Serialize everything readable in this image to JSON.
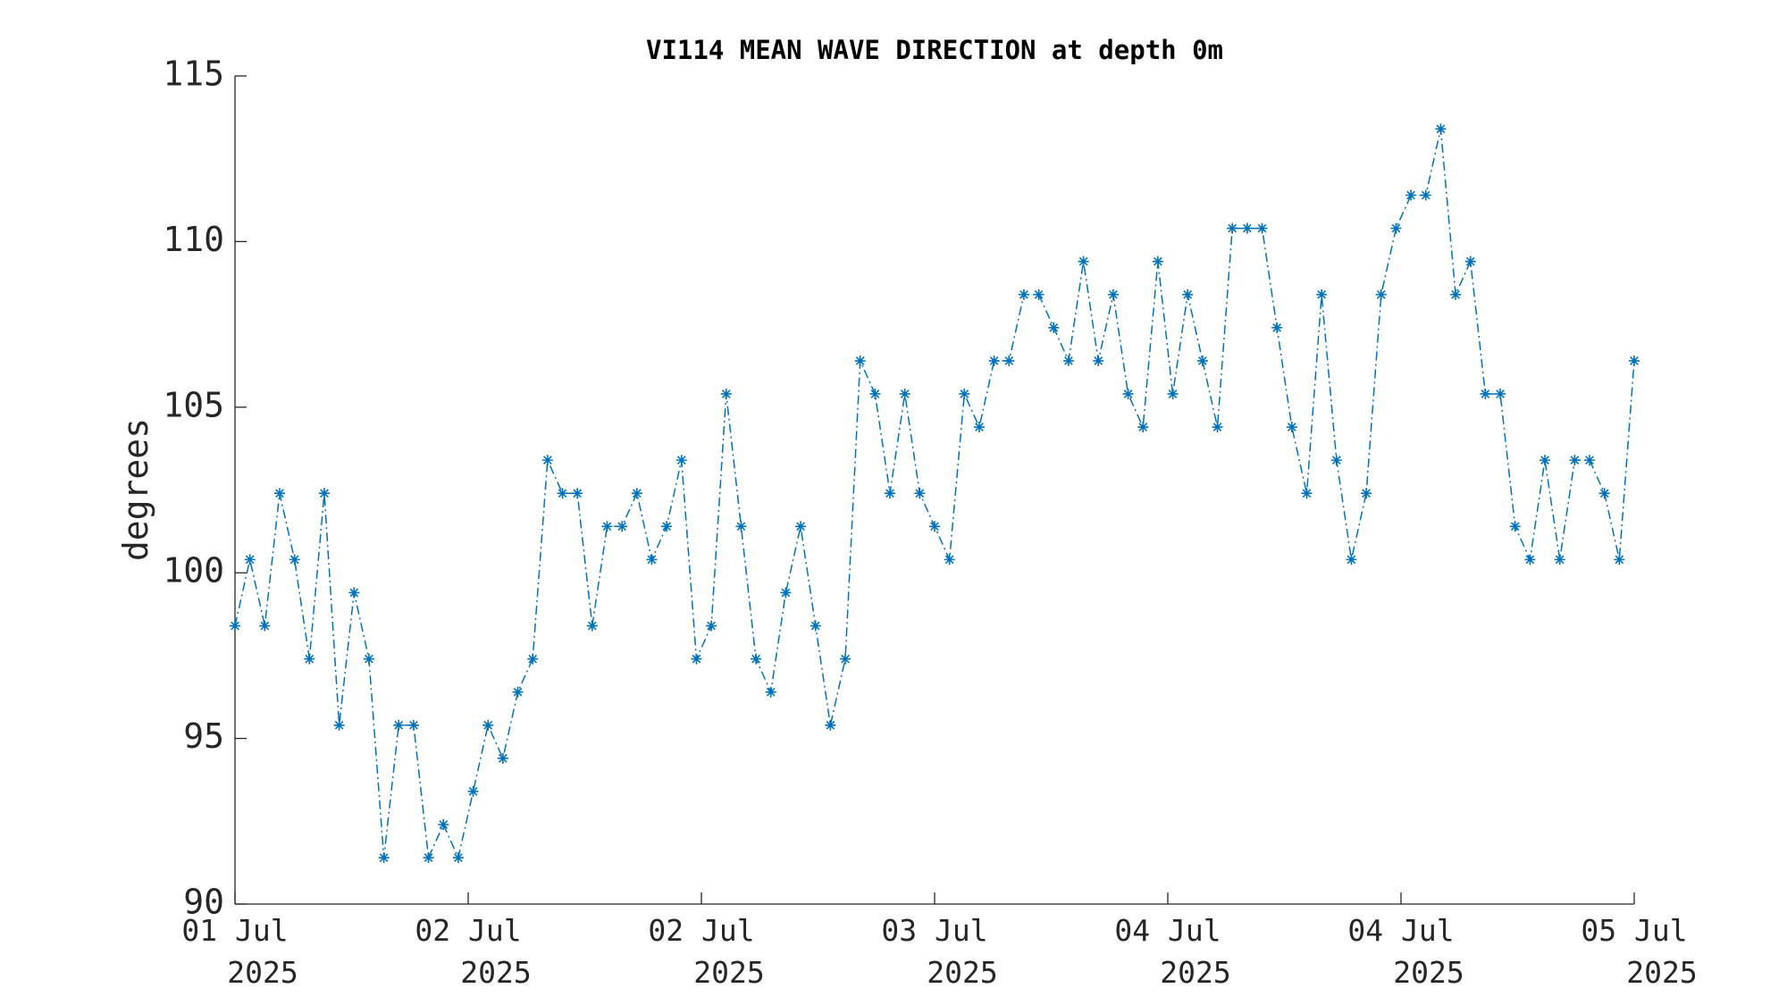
{
  "chart_data": {
    "type": "line",
    "title": "VI114 MEAN WAVE DIRECTION at depth 0m",
    "y_label": "degrees",
    "x": [
      0,
      1,
      2,
      3,
      4,
      5,
      6,
      7,
      8,
      9,
      10,
      11,
      12,
      13,
      14,
      15,
      16,
      17,
      18,
      19,
      20,
      21,
      22,
      23,
      24,
      25,
      26,
      27,
      28,
      29,
      30,
      31,
      32,
      33,
      34,
      35,
      36,
      37,
      38,
      39,
      40,
      41,
      42,
      43,
      44,
      45,
      46,
      47,
      48,
      49,
      50,
      51,
      52,
      53,
      54,
      55,
      56,
      57,
      58,
      59,
      60,
      61,
      62,
      63,
      64,
      65,
      66,
      67,
      68,
      69,
      70,
      71,
      72,
      73,
      74,
      75,
      76,
      77,
      78,
      79,
      80,
      81,
      82,
      83,
      84,
      85,
      86,
      87,
      88,
      89,
      90,
      91,
      92,
      93,
      94
    ],
    "series": [
      {
        "color": "#0072bd",
        "values": [
          98.4,
          100.4,
          98.4,
          102.4,
          100.4,
          97.4,
          102.4,
          95.4,
          99.4,
          97.4,
          91.4,
          95.4,
          95.4,
          91.4,
          92.4,
          91.4,
          93.4,
          95.4,
          94.4,
          96.4,
          97.4,
          103.4,
          102.4,
          102.4,
          98.4,
          101.4,
          101.4,
          102.4,
          100.4,
          101.4,
          103.4,
          97.4,
          98.4,
          105.4,
          101.4,
          97.4,
          96.4,
          99.4,
          101.4,
          98.4,
          95.4,
          97.4,
          106.4,
          105.4,
          102.4,
          105.4,
          102.4,
          101.4,
          100.4,
          105.4,
          104.4,
          106.4,
          106.4,
          108.4,
          108.4,
          107.4,
          106.4,
          109.4,
          106.4,
          108.4,
          105.4,
          104.4,
          109.4,
          105.4,
          108.4,
          106.4,
          104.4,
          110.4,
          110.4,
          110.4,
          107.4,
          104.4,
          102.4,
          108.4,
          103.4,
          100.4,
          102.4,
          108.4,
          110.4,
          111.4,
          111.4,
          113.4,
          108.4,
          109.4,
          105.4,
          105.4,
          101.4,
          100.4,
          103.4,
          100.4,
          103.4,
          103.4,
          102.4,
          100.4,
          106.4
        ]
      }
    ],
    "xlim": [
      0,
      94
    ],
    "xticks": [
      {
        "value": 0,
        "label": "01 Jul 2025"
      },
      {
        "value": 15.667,
        "label": "02 Jul 2025"
      },
      {
        "value": 31.333,
        "label": "02 Jul 2025"
      },
      {
        "value": 47,
        "label": "03 Jul 2025"
      },
      {
        "value": 62.667,
        "label": "04 Jul 2025"
      },
      {
        "value": 78.333,
        "label": "04 Jul 2025"
      },
      {
        "value": 94,
        "label": "05 Jul 2025"
      }
    ],
    "ylim": [
      90,
      115
    ],
    "yticks": [
      90,
      95,
      100,
      105,
      110,
      115
    ],
    "grid": false
  }
}
